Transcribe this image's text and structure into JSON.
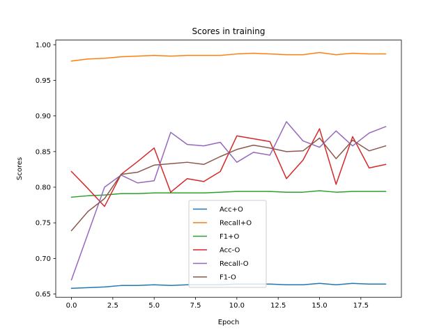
{
  "chart_data": {
    "type": "line",
    "title": "Scores in training",
    "xlabel": "Epoch",
    "ylabel": "Scores",
    "xlim": [
      -0.95,
      19.95
    ],
    "ylim": [
      0.6455,
      1.0065
    ],
    "xticks": [
      0,
      2.5,
      5,
      7.5,
      10,
      12.5,
      15,
      17.5
    ],
    "xtick_labels": [
      "0.0",
      "2.5",
      "5.0",
      "7.5",
      "10.0",
      "12.5",
      "15.0",
      "17.5"
    ],
    "yticks": [
      0.65,
      0.7,
      0.75,
      0.8,
      0.85,
      0.9,
      0.95,
      1.0
    ],
    "ytick_labels": [
      "0.65",
      "0.70",
      "0.75",
      "0.80",
      "0.85",
      "0.90",
      "0.95",
      "1.00"
    ],
    "grid": false,
    "legend_position": "lower-center",
    "x": [
      0,
      1,
      2,
      3,
      4,
      5,
      6,
      7,
      8,
      9,
      10,
      11,
      12,
      13,
      14,
      15,
      16,
      17,
      18,
      19
    ],
    "series": [
      {
        "name": "Acc+O",
        "color": "#1f77b4",
        "values": [
          0.658,
          0.659,
          0.66,
          0.662,
          0.662,
          0.663,
          0.662,
          0.663,
          0.663,
          0.663,
          0.664,
          0.664,
          0.664,
          0.663,
          0.663,
          0.665,
          0.663,
          0.665,
          0.664,
          0.664
        ]
      },
      {
        "name": "Recall+O",
        "color": "#ff7f0e",
        "values": [
          0.977,
          0.98,
          0.981,
          0.983,
          0.984,
          0.985,
          0.984,
          0.985,
          0.985,
          0.985,
          0.987,
          0.988,
          0.987,
          0.986,
          0.986,
          0.989,
          0.986,
          0.988,
          0.987,
          0.987
        ]
      },
      {
        "name": "F1+O",
        "color": "#2ca02c",
        "values": [
          0.786,
          0.788,
          0.789,
          0.791,
          0.791,
          0.792,
          0.792,
          0.792,
          0.792,
          0.793,
          0.794,
          0.794,
          0.794,
          0.793,
          0.793,
          0.795,
          0.793,
          0.794,
          0.794,
          0.794
        ]
      },
      {
        "name": "Acc-O",
        "color": "#d62728",
        "values": [
          0.822,
          0.798,
          0.773,
          0.818,
          0.836,
          0.855,
          0.793,
          0.812,
          0.808,
          0.822,
          0.872,
          0.868,
          0.864,
          0.812,
          0.838,
          0.882,
          0.804,
          0.871,
          0.827,
          0.832
        ]
      },
      {
        "name": "Recall-O",
        "color": "#9467bd",
        "values": [
          0.67,
          0.735,
          0.8,
          0.817,
          0.806,
          0.809,
          0.877,
          0.86,
          0.858,
          0.863,
          0.835,
          0.849,
          0.845,
          0.892,
          0.865,
          0.856,
          0.879,
          0.858,
          0.876,
          0.885
        ]
      },
      {
        "name": "F1-O",
        "color": "#8c564b",
        "values": [
          0.739,
          0.766,
          0.784,
          0.818,
          0.821,
          0.831,
          0.833,
          0.835,
          0.832,
          0.843,
          0.853,
          0.859,
          0.855,
          0.85,
          0.851,
          0.869,
          0.84,
          0.866,
          0.851,
          0.858
        ]
      }
    ]
  }
}
